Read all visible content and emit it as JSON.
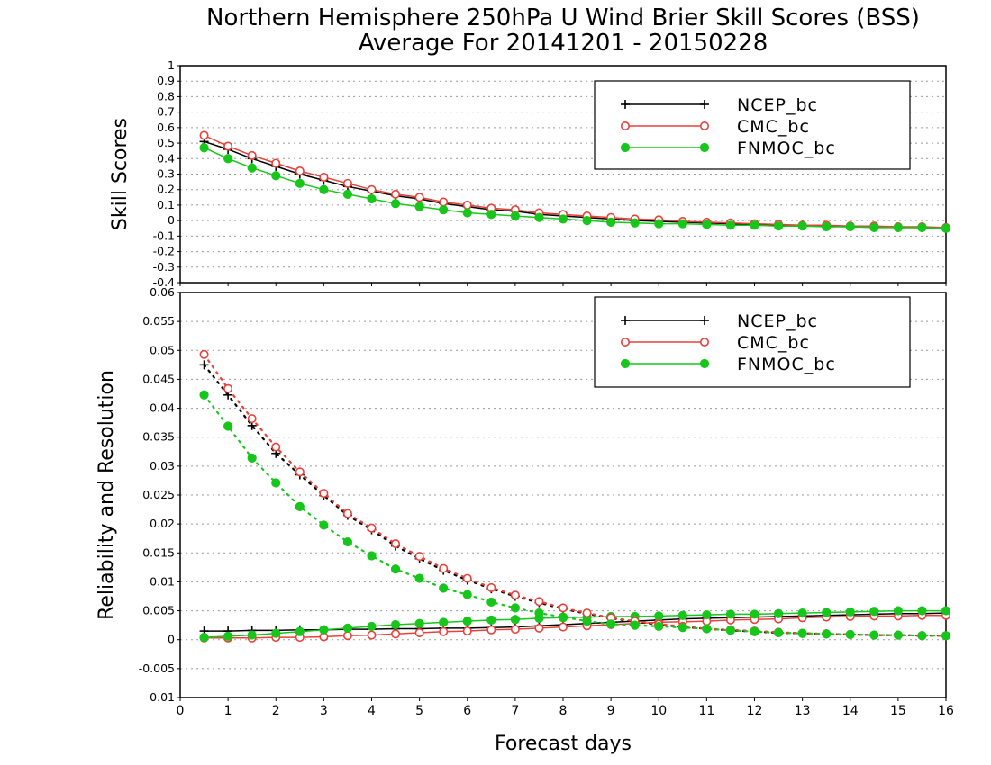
{
  "title": {
    "line1": "Northern Hemisphere 250hPa U Wind Brier Skill Scores (BSS)",
    "line2": "Average For 20141201 - 20150228"
  },
  "colors": {
    "NCEP_bc": "#000000",
    "CMC_bc": "#e8413a",
    "FNMOC_bc": "#17c61a"
  },
  "chart_data": [
    {
      "type": "line",
      "ylabel": "Skill Scores",
      "xlabel": "",
      "xlim": [
        0,
        16
      ],
      "ylim": [
        -0.4,
        1
      ],
      "x_ticks": [
        "0",
        "1",
        "2",
        "3",
        "4",
        "5",
        "6",
        "7",
        "8",
        "9",
        "10",
        "11",
        "12",
        "13",
        "14",
        "15",
        "16"
      ],
      "y_ticks": [
        "-0.4",
        "-0.3",
        "-0.2",
        "-0.1",
        "0",
        "0.1",
        "0.2",
        "0.3",
        "0.4",
        "0.5",
        "0.6",
        "0.7",
        "0.8",
        "0.9",
        "1"
      ],
      "grid": true,
      "legend": "top-right",
      "x": [
        0.5,
        1,
        1.5,
        2,
        2.5,
        3,
        3.5,
        4,
        4.5,
        5,
        5.5,
        6,
        6.5,
        7,
        7.5,
        8,
        8.5,
        9,
        9.5,
        10,
        10.5,
        11,
        11.5,
        12,
        12.5,
        13,
        13.5,
        14,
        14.5,
        15,
        15.5,
        16
      ],
      "series": [
        {
          "name": "NCEP_bc",
          "marker": "plus",
          "style": "solid",
          "values": [
            0.51,
            0.46,
            0.4,
            0.35,
            0.3,
            0.26,
            0.22,
            0.19,
            0.16,
            0.14,
            0.11,
            0.09,
            0.07,
            0.06,
            0.04,
            0.03,
            0.02,
            0.01,
            0.0,
            -0.005,
            -0.01,
            -0.015,
            -0.02,
            -0.025,
            -0.03,
            -0.03,
            -0.035,
            -0.04,
            -0.04,
            -0.045,
            -0.045,
            -0.05
          ]
        },
        {
          "name": "CMC_bc",
          "marker": "open-circle",
          "style": "solid",
          "values": [
            0.55,
            0.48,
            0.42,
            0.37,
            0.32,
            0.28,
            0.24,
            0.2,
            0.17,
            0.15,
            0.12,
            0.1,
            0.08,
            0.07,
            0.05,
            0.04,
            0.03,
            0.02,
            0.01,
            0.005,
            -0.005,
            -0.01,
            -0.015,
            -0.02,
            -0.025,
            -0.03,
            -0.03,
            -0.035,
            -0.035,
            -0.04,
            -0.04,
            -0.045
          ]
        },
        {
          "name": "FNMOC_bc",
          "marker": "filled-circle",
          "style": "solid",
          "values": [
            0.47,
            0.4,
            0.34,
            0.29,
            0.24,
            0.2,
            0.17,
            0.14,
            0.11,
            0.09,
            0.07,
            0.05,
            0.04,
            0.03,
            0.02,
            0.01,
            0.0,
            -0.01,
            -0.015,
            -0.02,
            -0.02,
            -0.025,
            -0.03,
            -0.03,
            -0.035,
            -0.035,
            -0.04,
            -0.04,
            -0.045,
            -0.045,
            -0.045,
            -0.05
          ]
        }
      ]
    },
    {
      "type": "line",
      "ylabel": "Reliability and Resolution",
      "xlabel": "Forecast days",
      "xlim": [
        0,
        16
      ],
      "ylim": [
        -0.01,
        0.06
      ],
      "x_ticks": [
        "0",
        "1",
        "2",
        "3",
        "4",
        "5",
        "6",
        "7",
        "8",
        "9",
        "10",
        "11",
        "12",
        "13",
        "14",
        "15",
        "16"
      ],
      "y_ticks": [
        "-0.01",
        "-0.005",
        "0",
        "0.005",
        "0.01",
        "0.015",
        "0.02",
        "0.025",
        "0.03",
        "0.035",
        "0.04",
        "0.045",
        "0.05",
        "0.055",
        "0.06"
      ],
      "grid": true,
      "legend": "top-right",
      "x": [
        0.5,
        1,
        1.5,
        2,
        2.5,
        3,
        3.5,
        4,
        4.5,
        5,
        5.5,
        6,
        6.5,
        7,
        7.5,
        8,
        8.5,
        9,
        9.5,
        10,
        10.5,
        11,
        11.5,
        12,
        12.5,
        13,
        13.5,
        14,
        14.5,
        15,
        15.5,
        16
      ],
      "series": [
        {
          "name": "NCEP_bc",
          "marker": "plus",
          "style": "solid",
          "legend": true,
          "values": [
            0.0015,
            0.0015,
            0.0016,
            0.0016,
            0.0017,
            0.0017,
            0.0018,
            0.0018,
            0.0019,
            0.0019,
            0.002,
            0.002,
            0.0021,
            0.0022,
            0.0024,
            0.0026,
            0.0028,
            0.003,
            0.0032,
            0.0034,
            0.0036,
            0.0037,
            0.0038,
            0.0039,
            0.004,
            0.0041,
            0.0042,
            0.0043,
            0.0044,
            0.0045,
            0.0045,
            0.0046
          ]
        },
        {
          "name": "CMC_bc",
          "marker": "open-circle",
          "style": "solid",
          "legend": true,
          "values": [
            0.0003,
            0.0003,
            0.0003,
            0.0004,
            0.0004,
            0.0005,
            0.0007,
            0.0008,
            0.001,
            0.0012,
            0.0014,
            0.0015,
            0.0017,
            0.0018,
            0.002,
            0.0022,
            0.0024,
            0.0026,
            0.0028,
            0.003,
            0.0031,
            0.0032,
            0.0034,
            0.0035,
            0.0036,
            0.0038,
            0.0039,
            0.004,
            0.0041,
            0.0041,
            0.0042,
            0.0042
          ]
        },
        {
          "name": "FNMOC_bc",
          "marker": "filled-circle",
          "style": "solid",
          "legend": true,
          "values": [
            0.0004,
            0.0006,
            0.0008,
            0.0011,
            0.0014,
            0.0017,
            0.002,
            0.0023,
            0.0026,
            0.0028,
            0.003,
            0.0032,
            0.0034,
            0.0035,
            0.0037,
            0.0038,
            0.0039,
            0.004,
            0.004,
            0.0041,
            0.0042,
            0.0043,
            0.0044,
            0.0044,
            0.0045,
            0.0046,
            0.0047,
            0.0048,
            0.0049,
            0.005,
            0.005,
            0.005
          ]
        },
        {
          "name": "NCEP_bc",
          "marker": "plus",
          "style": "dotted",
          "legend": false,
          "values": [
            0.0475,
            0.0423,
            0.037,
            0.0322,
            0.0285,
            0.0249,
            0.0215,
            0.019,
            0.0162,
            0.014,
            0.012,
            0.0103,
            0.0088,
            0.0075,
            0.0064,
            0.0053,
            0.0045,
            0.0037,
            0.0031,
            0.0026,
            0.0022,
            0.0019,
            0.0016,
            0.0014,
            0.0012,
            0.0011,
            0.001,
            0.0009,
            0.0008,
            0.0008,
            0.0007,
            0.0007
          ]
        },
        {
          "name": "CMC_bc",
          "marker": "open-circle",
          "style": "dotted",
          "legend": false,
          "values": [
            0.0493,
            0.0434,
            0.0382,
            0.0333,
            0.029,
            0.0253,
            0.0218,
            0.0193,
            0.0166,
            0.0144,
            0.0123,
            0.0106,
            0.009,
            0.0077,
            0.0066,
            0.0055,
            0.0046,
            0.0038,
            0.0032,
            0.0027,
            0.0023,
            0.0019,
            0.0017,
            0.0015,
            0.0013,
            0.0011,
            0.001,
            0.0009,
            0.0008,
            0.0008,
            0.0007,
            0.0007
          ]
        },
        {
          "name": "FNMOC_bc",
          "marker": "filled-circle",
          "style": "dotted",
          "legend": false,
          "values": [
            0.0423,
            0.0369,
            0.0314,
            0.0271,
            0.023,
            0.0198,
            0.0169,
            0.0145,
            0.0122,
            0.0106,
            0.0089,
            0.0078,
            0.0065,
            0.0055,
            0.0046,
            0.0039,
            0.0032,
            0.0027,
            0.0025,
            0.0023,
            0.0021,
            0.0019,
            0.0016,
            0.0014,
            0.0012,
            0.0011,
            0.001,
            0.0009,
            0.0008,
            0.0008,
            0.0007,
            0.0007
          ]
        }
      ]
    }
  ]
}
